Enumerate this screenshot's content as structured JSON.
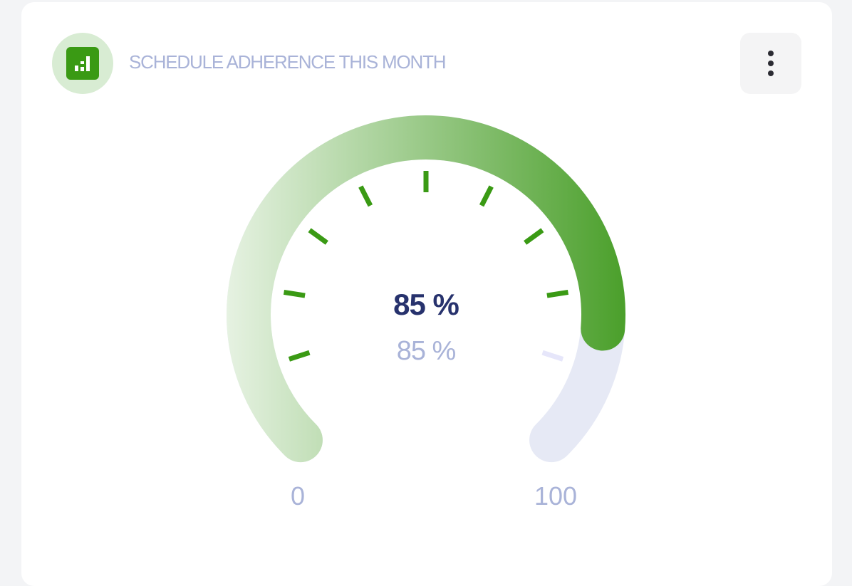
{
  "widget": {
    "title": "SCHEDULE ADHERENCE THIS MONTH",
    "icon": "bar-chart-icon",
    "menu_icon": "more-vertical-icon"
  },
  "gauge": {
    "value": 85,
    "min": 0,
    "max": 100,
    "value_label": "85 %",
    "secondary_label": "85 %",
    "min_label": "0",
    "max_label": "100",
    "colors": {
      "fill_start": "#e6f2e2",
      "fill_end": "#4a9f2a",
      "track": "#e6e9f5",
      "tick": "#3a9a14",
      "tick_inactive": "#e6e6fa"
    }
  }
}
